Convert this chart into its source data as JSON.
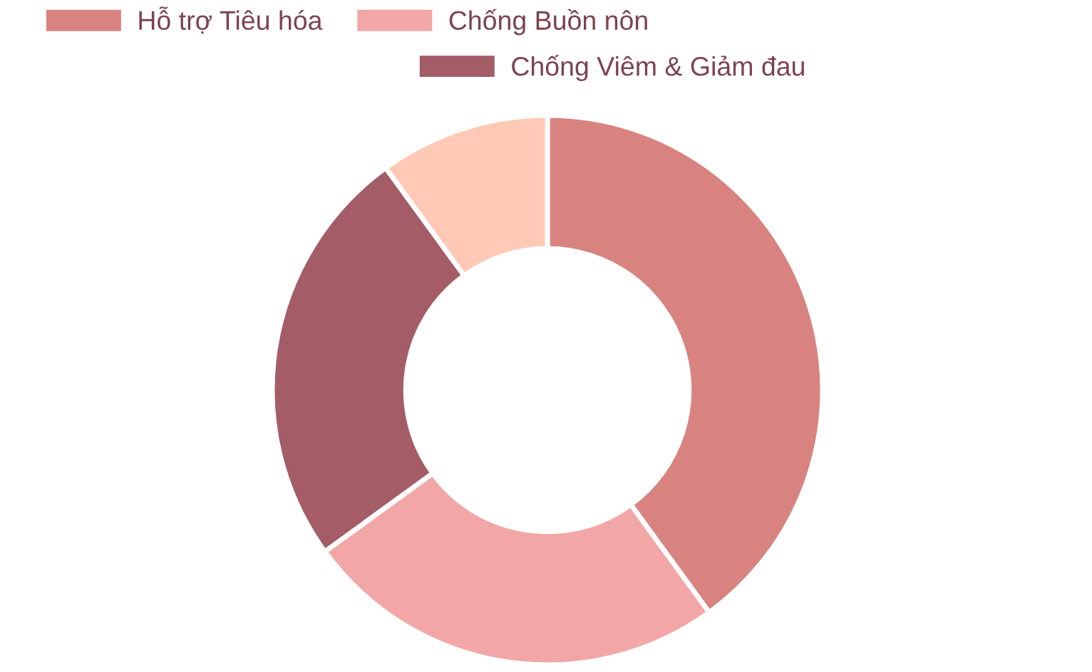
{
  "chart_data": {
    "type": "donut",
    "categories": [
      "Hỗ trợ Tiêu hóa",
      "Chống Buồn nôn",
      "Chống Viêm & Giảm đau",
      null
    ],
    "values": [
      40,
      25,
      25,
      10
    ],
    "colors": [
      "#d98380",
      "#f2a7a6",
      "#a45c66",
      "#ffc9b5"
    ],
    "legend": "top"
  }
}
